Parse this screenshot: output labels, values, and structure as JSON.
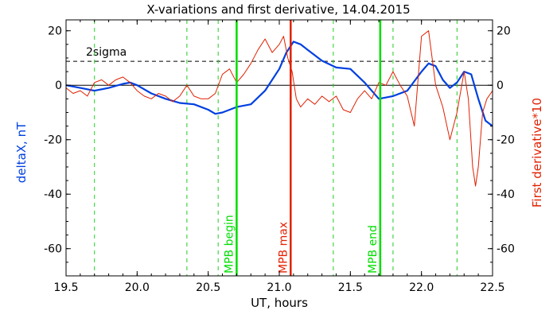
{
  "chart_data": {
    "type": "line",
    "title": "X-variations and first derivative, 14.04.2015",
    "xlabel": "UT, hours",
    "ylabel_left": "deltaX, nT",
    "ylabel_right": "First derivative*10",
    "xlim": [
      19.5,
      22.5
    ],
    "ylim": [
      -70,
      24
    ],
    "x_ticks": [
      "19.5",
      "20.0",
      "20.5",
      "21.0",
      "21.5",
      "22.0",
      "22.5"
    ],
    "y_ticks": [
      "20",
      "0",
      "-20",
      "-40",
      "-60"
    ],
    "grid": false,
    "legend": "none",
    "colors": {
      "deltaX": "#0040e0",
      "derivative": "#e02000",
      "green": "#00dd00",
      "red": "#e02000",
      "dashed_green": "#22cc22",
      "axis": "#000000"
    },
    "threshold": {
      "label": "2sigma",
      "value": 8.8
    },
    "zero_line": 0,
    "markers": [
      {
        "label": "MPB begin",
        "x": 20.7,
        "color": "#00dd00"
      },
      {
        "label": "MPB max",
        "x": 21.08,
        "color": "#e02000"
      },
      {
        "label": "MPB end",
        "x": 21.71,
        "color": "#00dd00"
      }
    ],
    "dashed_verticals": [
      19.7,
      20.35,
      20.57,
      21.38,
      21.8,
      22.25
    ],
    "series": [
      {
        "key": "deltaX",
        "x": [
          19.5,
          19.6,
          19.7,
          19.8,
          19.9,
          19.95,
          20.0,
          20.1,
          20.2,
          20.3,
          20.4,
          20.5,
          20.55,
          20.6,
          20.7,
          20.8,
          20.9,
          21.0,
          21.05,
          21.1,
          21.15,
          21.2,
          21.3,
          21.4,
          21.5,
          21.6,
          21.7,
          21.8,
          21.9,
          22.0,
          22.05,
          22.1,
          22.15,
          22.2,
          22.25,
          22.3,
          22.35,
          22.4,
          22.45,
          22.5
        ],
        "values": [
          0,
          -1,
          -2,
          -1,
          0.5,
          1,
          0,
          -3,
          -5,
          -6.5,
          -7,
          -9,
          -10.5,
          -10,
          -8,
          -7,
          -2,
          6,
          12,
          16,
          15,
          13,
          9,
          6.5,
          6,
          1,
          -5,
          -4,
          -2,
          5,
          8,
          7,
          2,
          -1,
          1,
          5,
          4,
          -5,
          -13,
          -15
        ]
      },
      {
        "key": "derivative",
        "x": [
          19.5,
          19.55,
          19.6,
          19.65,
          19.7,
          19.75,
          19.8,
          19.85,
          19.9,
          19.95,
          20.0,
          20.05,
          20.1,
          20.15,
          20.2,
          20.25,
          20.3,
          20.35,
          20.4,
          20.45,
          20.5,
          20.55,
          20.6,
          20.65,
          20.7,
          20.75,
          20.8,
          20.85,
          20.9,
          20.95,
          21.0,
          21.03,
          21.06,
          21.09,
          21.12,
          21.15,
          21.2,
          21.25,
          21.3,
          21.35,
          21.4,
          21.45,
          21.5,
          21.55,
          21.6,
          21.65,
          21.7,
          21.75,
          21.8,
          21.85,
          21.9,
          21.95,
          22.0,
          22.05,
          22.1,
          22.15,
          22.2,
          22.25,
          22.3,
          22.33,
          22.36,
          22.38,
          22.4,
          22.43,
          22.46,
          22.5
        ],
        "values": [
          -1,
          -3,
          -2,
          -4,
          1,
          2,
          0,
          2,
          3,
          1,
          -2,
          -4,
          -5,
          -3,
          -4,
          -6,
          -4,
          0,
          -4,
          -5,
          -5,
          -3,
          4,
          6,
          1,
          4,
          8,
          13,
          17,
          12,
          15,
          18,
          10,
          5,
          -5,
          -8,
          -5,
          -7,
          -4,
          -6,
          -4,
          -9,
          -10,
          -5,
          -2,
          -5,
          1,
          0,
          5,
          0,
          -4,
          -15,
          18,
          20,
          0,
          -8,
          -20,
          -10,
          5,
          -5,
          -30,
          -37,
          -30,
          -10,
          -5,
          -2
        ]
      }
    ]
  }
}
